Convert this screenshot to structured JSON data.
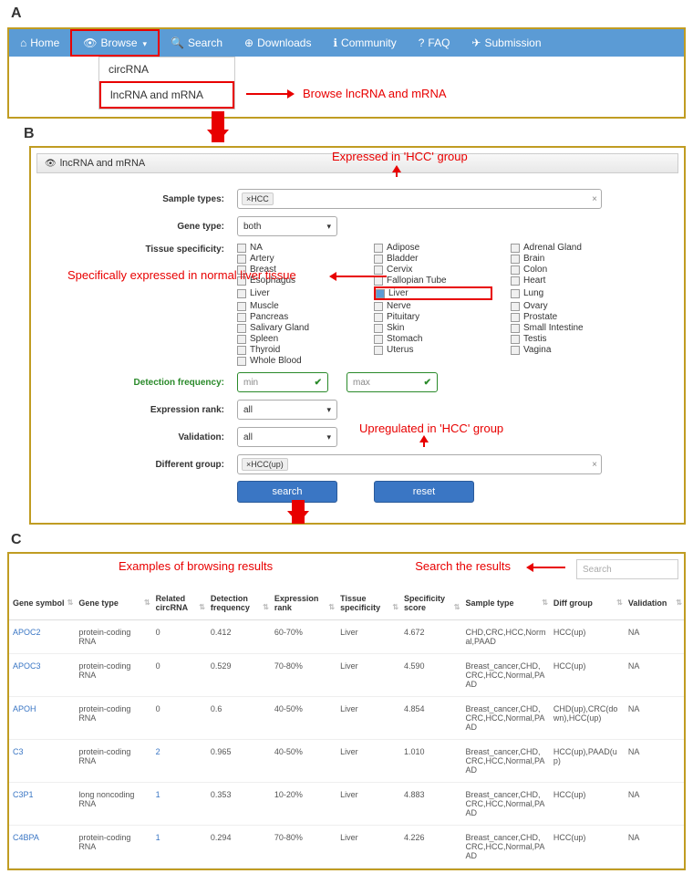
{
  "panelA": {
    "nav": [
      "Home",
      "Browse",
      "Search",
      "Downloads",
      "Community",
      "FAQ",
      "Submission"
    ],
    "nav_icons": [
      "⌂",
      "👁",
      "🔍",
      "⊕",
      "ℹ",
      "?",
      "✈"
    ],
    "dropdown": [
      "circRNA",
      "lncRNA and mRNA"
    ],
    "annotation": "Browse lncRNA and mRNA"
  },
  "panelB": {
    "header": "lncRNA and mRNA",
    "ann_top": "Expressed in 'HCC' group",
    "sample_label": "Sample types:",
    "sample_pill": "×HCC",
    "gene_label": "Gene type:",
    "gene_value": "both",
    "tissue_label": "Tissue specificity:",
    "tissues_col1": [
      "NA",
      "Artery",
      "Breast",
      "Esophagus",
      "Liver",
      "Muscle",
      "Pancreas",
      "Salivary Gland",
      "Spleen",
      "Thyroid",
      "Whole Blood"
    ],
    "tissues_col2": [
      "Adipose",
      "Bladder",
      "Cervix",
      "Fallopian Tube",
      "Liver",
      "Nerve",
      "Pituitary",
      "Skin",
      "Stomach",
      "Uterus"
    ],
    "tissues_col3": [
      "Adrenal Gland",
      "Brain",
      "Colon",
      "Heart",
      "Lung",
      "Ovary",
      "Prostate",
      "Small Intestine",
      "Testis",
      "Vagina"
    ],
    "ann_tissue": "Specifically expressed in normal liver tissue",
    "detect_label": "Detection frequency:",
    "min": "min",
    "max": "max",
    "rank_label": "Expression rank:",
    "rank_value": "all",
    "valid_label": "Validation:",
    "valid_value": "all",
    "ann_diff": "Upregulated in 'HCC' group",
    "diff_label": "Different group:",
    "diff_pill": "×HCC(up)",
    "btn_search": "search",
    "btn_reset": "reset"
  },
  "panelC": {
    "ann_left": "Examples of browsing results",
    "ann_right": "Search the results",
    "search_placeholder": "Search",
    "columns": [
      "Gene symbol",
      "Gene type",
      "Related circRNA",
      "Detection frequency",
      "Expression rank",
      "Tissue specificity",
      "Specificity score",
      "Sample type",
      "Diff group",
      "Validation"
    ],
    "rows": [
      [
        "APOC2",
        "protein-coding RNA",
        "0",
        "0.412",
        "60-70%",
        "Liver",
        "4.672",
        "CHD,CRC,HCC,Normal,PAAD",
        "HCC(up)",
        "NA"
      ],
      [
        "APOC3",
        "protein-coding RNA",
        "0",
        "0.529",
        "70-80%",
        "Liver",
        "4.590",
        "Breast_cancer,CHD,CRC,HCC,Normal,PAAD",
        "HCC(up)",
        "NA"
      ],
      [
        "APOH",
        "protein-coding RNA",
        "0",
        "0.6",
        "40-50%",
        "Liver",
        "4.854",
        "Breast_cancer,CHD,CRC,HCC,Normal,PAAD",
        "CHD(up),CRC(down),HCC(up)",
        "NA"
      ],
      [
        "C3",
        "protein-coding RNA",
        "2",
        "0.965",
        "40-50%",
        "Liver",
        "1.010",
        "Breast_cancer,CHD,CRC,HCC,Normal,PAAD",
        "HCC(up),PAAD(up)",
        "NA"
      ],
      [
        "C3P1",
        "long noncoding RNA",
        "1",
        "0.353",
        "10-20%",
        "Liver",
        "4.883",
        "Breast_cancer,CHD,CRC,HCC,Normal,PAAD",
        "HCC(up)",
        "NA"
      ],
      [
        "C4BPA",
        "protein-coding RNA",
        "1",
        "0.294",
        "70-80%",
        "Liver",
        "4.226",
        "Breast_cancer,CHD,CRC,HCC,Normal,PAAD",
        "HCC(up)",
        "NA"
      ]
    ],
    "col_widths": [
      "60",
      "70",
      "50",
      "58",
      "60",
      "58",
      "56",
      "80",
      "68",
      "54"
    ]
  },
  "colors": {
    "accent": "#5b9bd5",
    "gold": "#c09c22",
    "red": "#e80000",
    "link": "#3a76c4"
  }
}
